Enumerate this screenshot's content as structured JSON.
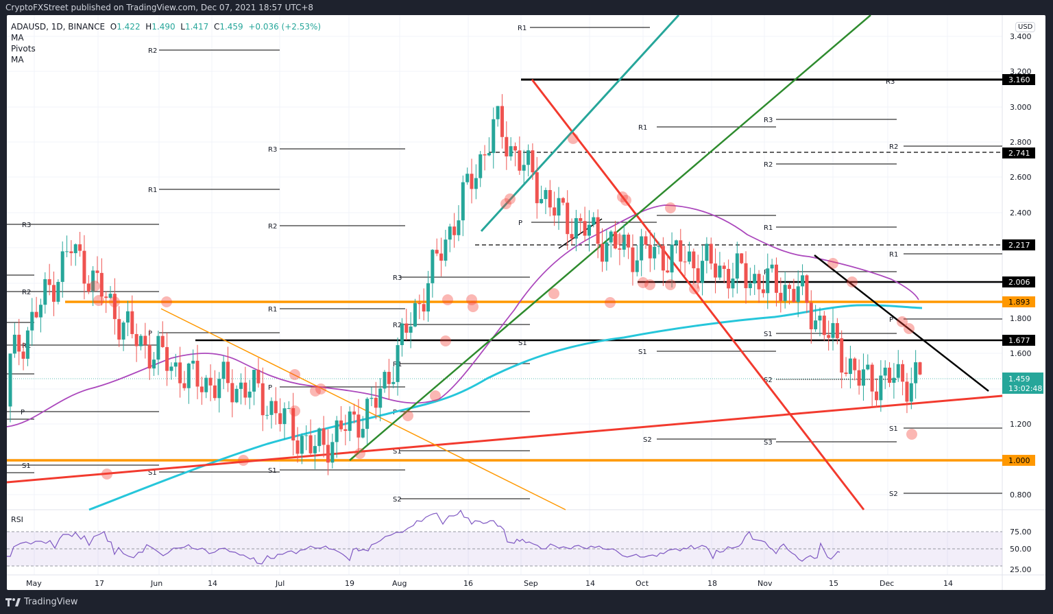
{
  "header": {
    "published": "CryptoFXStreet published on TradingView.com, Dec 07, 2021 18:57 UTC+8"
  },
  "legend": {
    "symbol": "ADAUSD, 1D, BINANCE",
    "o_label": "O",
    "o": "1.422",
    "h_label": "H",
    "h": "1.490",
    "l_label": "L",
    "l": "1.417",
    "c_label": "C",
    "c": "1.459",
    "change": "+0.036 (+2.53%)",
    "indicators": [
      "MA",
      "Pivots",
      "MA"
    ]
  },
  "price_axis": {
    "currency": "USD",
    "ticks": [
      "3.400",
      "3.200",
      "3.000",
      "2.800",
      "2.600",
      "2.400",
      "2.200",
      "2.000",
      "1.800",
      "1.600",
      "1.400",
      "1.200",
      "1.000",
      "0.800"
    ],
    "tags": [
      {
        "value": "3.160",
        "color": "#000000"
      },
      {
        "value": "2.741",
        "color": "#000000"
      },
      {
        "value": "2.217",
        "color": "#000000"
      },
      {
        "value": "2.006",
        "color": "#000000"
      },
      {
        "value": "1.893",
        "color": "#ff9800"
      },
      {
        "value": "1.677",
        "color": "#000000"
      },
      {
        "value": "1.000",
        "color": "#ff9800"
      }
    ],
    "last_price": "1.459",
    "countdown": "13:02:48",
    "last_color": "#26a69a"
  },
  "rsi": {
    "label": "RSI",
    "ticks": [
      "75.00",
      "50.00",
      "25.00"
    ],
    "line_color": "#7e57c2"
  },
  "time_axis": {
    "ticks": [
      "May",
      "17",
      "Jun",
      "14",
      "Jul",
      "19",
      "Aug",
      "16",
      "Sep",
      "14",
      "Oct",
      "18",
      "Nov",
      "15",
      "Dec",
      "14"
    ]
  },
  "footer": {
    "brand": "TradingView"
  },
  "chart_data": {
    "type": "candlestick",
    "title": "ADAUSD, 1D, BINANCE",
    "symbol": "ADAUSD",
    "interval": "1D",
    "exchange": "BINANCE",
    "last": {
      "open": 1.422,
      "high": 1.49,
      "low": 1.417,
      "close": 1.459,
      "change": 0.036,
      "change_pct": 2.53
    },
    "x_ticks": [
      "May",
      "17",
      "Jun",
      "14",
      "Jul",
      "19",
      "Aug",
      "16",
      "Sep",
      "14",
      "Oct",
      "18",
      "Nov",
      "15",
      "Dec",
      "14"
    ],
    "ylim": [
      0.72,
      3.52
    ],
    "ylabel": "USD",
    "horizontal_levels": [
      {
        "value": 3.16,
        "style": "solid-thick",
        "color": "#000000"
      },
      {
        "value": 2.741,
        "style": "dashed",
        "color": "#000000"
      },
      {
        "value": 2.217,
        "style": "dashed",
        "color": "#000000"
      },
      {
        "value": 2.006,
        "style": "solid-thick",
        "color": "#000000"
      },
      {
        "value": 1.893,
        "style": "solid-thick",
        "color": "#ff9800"
      },
      {
        "value": 1.677,
        "style": "solid-thick",
        "color": "#000000"
      },
      {
        "value": 1.0,
        "style": "solid-thick",
        "color": "#ff9800"
      }
    ],
    "indicators": [
      "MA (purple, ~50)",
      "MA (cyan, ~200)",
      "Pivots (monthly R3/R2/R1/P/S1/S2/S3)"
    ],
    "approx_closes": [
      {
        "date": "May",
        "close": 1.55
      },
      {
        "date": "17 May",
        "close": 2.2
      },
      {
        "date": "Jun",
        "close": 1.7
      },
      {
        "date": "14 Jun",
        "close": 1.45
      },
      {
        "date": "Jul",
        "close": 1.4
      },
      {
        "date": "19 Jul",
        "close": 1.05
      },
      {
        "date": "Aug",
        "close": 1.3
      },
      {
        "date": "16 Aug",
        "close": 2.1
      },
      {
        "date": "Sep",
        "close": 2.9
      },
      {
        "date": "14 Sep",
        "close": 2.4
      },
      {
        "date": "Oct",
        "close": 2.2
      },
      {
        "date": "18 Oct",
        "close": 2.15
      },
      {
        "date": "Nov",
        "close": 2.05
      },
      {
        "date": "15 Nov",
        "close": 1.95
      },
      {
        "date": "Dec",
        "close": 1.45
      },
      {
        "date": "7 Dec",
        "close": 1.459
      }
    ],
    "rsi": {
      "levels": [
        75,
        50,
        25
      ],
      "ylim": [
        20,
        90
      ]
    }
  }
}
